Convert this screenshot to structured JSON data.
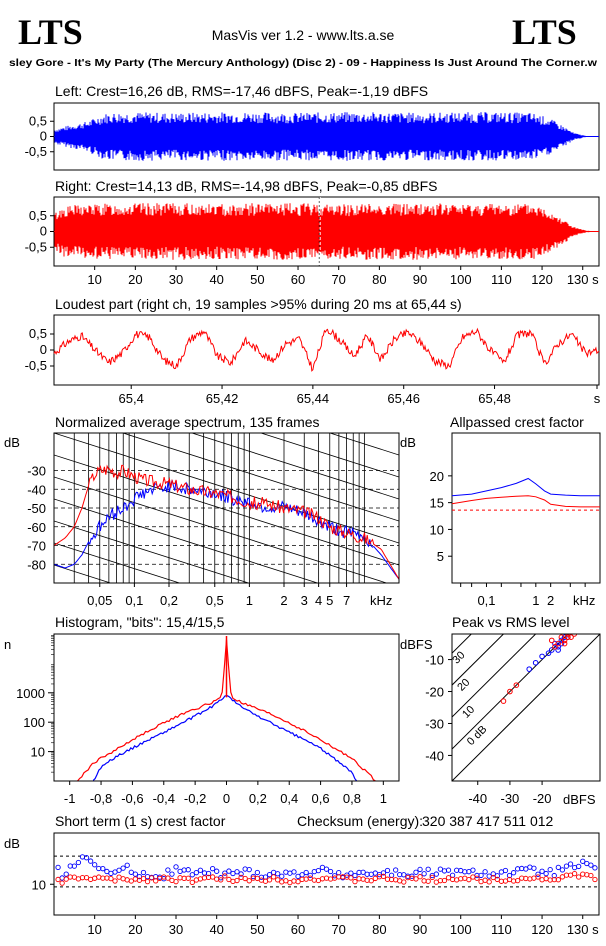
{
  "header": {
    "logo_left": "LTS",
    "logo_right": "LTS",
    "app_title": "MasVis ver 1.2 - www.lts.a.se",
    "song": "sley Gore - It's My Party (The Mercury Anthology) (Disc 2) - 09 - Happiness Is Just Around The Corner.w"
  },
  "colors": {
    "left": "#0000ff",
    "right": "#ff0000",
    "axis": "#000000"
  },
  "chart_data": [
    {
      "id": "left",
      "type": "area",
      "title": "Left: Crest=16,26 dB, RMS=-17,46 dBFS, Peak=-1,19 dBFS",
      "ylim": [
        -1,
        1
      ],
      "y_ticks": [
        "0,5",
        "0",
        "-0,5"
      ],
      "xlim": [
        0,
        134
      ],
      "envelope": {
        "t": [
          0,
          3,
          8,
          12,
          15,
          20,
          30,
          40,
          50,
          60,
          70,
          80,
          90,
          100,
          110,
          118,
          122,
          126,
          128,
          131,
          134
        ],
        "amp": [
          0.25,
          0.35,
          0.5,
          0.75,
          0.8,
          0.8,
          0.78,
          0.8,
          0.8,
          0.78,
          0.8,
          0.8,
          0.78,
          0.8,
          0.8,
          0.78,
          0.6,
          0.3,
          0.12,
          0.02,
          0.0
        ]
      }
    },
    {
      "id": "right",
      "type": "area",
      "title": "Right: Crest=14,13 dB, RMS=-14,98 dBFS, Peak=-0,85 dBFS",
      "ylim": [
        -1,
        1
      ],
      "y_ticks": [
        "0,5",
        "0",
        "-0,5"
      ],
      "xlim": [
        0,
        134
      ],
      "marker_x": 65.44,
      "x_ticks": [
        "10",
        "20",
        "30",
        "40",
        "50",
        "60",
        "70",
        "80",
        "90",
        "100",
        "110",
        "120",
        "130 s"
      ],
      "x_tick_values": [
        10,
        20,
        30,
        40,
        50,
        60,
        70,
        80,
        90,
        100,
        110,
        120,
        130
      ],
      "envelope": {
        "t": [
          0,
          2,
          5,
          10,
          20,
          30,
          40,
          50,
          60,
          70,
          80,
          90,
          100,
          110,
          118,
          122,
          126,
          128,
          131,
          134
        ],
        "amp": [
          0.6,
          0.8,
          0.85,
          0.88,
          0.9,
          0.9,
          0.88,
          0.9,
          0.9,
          0.88,
          0.9,
          0.9,
          0.88,
          0.9,
          0.88,
          0.7,
          0.35,
          0.15,
          0.03,
          0.0
        ]
      }
    },
    {
      "id": "loudest",
      "type": "line",
      "title": "Loudest part (right ch, 19 samples >95% during 20 ms at 65,44 s)",
      "ylim": [
        -1,
        1
      ],
      "y_ticks": [
        "0,5",
        "0",
        "-0,5"
      ],
      "xlim": [
        65.383,
        65.503
      ],
      "x_ticks": [
        "65,4",
        "65,42",
        "65,44",
        "65,46",
        "65,48",
        "s"
      ],
      "x_tick_values": [
        65.4,
        65.42,
        65.44,
        65.46,
        65.48,
        65.5
      ],
      "points": {
        "x": [
          65.383,
          65.386,
          65.389,
          65.392,
          65.395,
          65.398,
          65.401,
          65.404,
          65.407,
          65.41,
          65.413,
          65.416,
          65.419,
          65.422,
          65.425,
          65.428,
          65.431,
          65.434,
          65.437,
          65.44,
          65.443,
          65.446,
          65.449,
          65.452,
          65.455,
          65.458,
          65.461,
          65.464,
          65.467,
          65.47,
          65.473,
          65.476,
          65.479,
          65.482,
          65.485,
          65.488,
          65.491,
          65.494,
          65.497,
          65.5,
          65.503
        ],
        "y": [
          -0.1,
          0.25,
          0.45,
          0.0,
          -0.4,
          -0.1,
          0.5,
          0.4,
          -0.3,
          -0.5,
          0.35,
          0.6,
          -0.2,
          -0.4,
          0.3,
          0.0,
          -0.35,
          0.2,
          0.35,
          -0.6,
          0.7,
          0.3,
          -0.2,
          0.45,
          -0.3,
          0.35,
          0.55,
          0.2,
          -0.35,
          -0.5,
          0.4,
          0.6,
          0.0,
          -0.4,
          0.45,
          0.55,
          -0.45,
          0.2,
          0.5,
          -0.1,
          0.0
        ]
      }
    },
    {
      "id": "spectrum",
      "type": "line",
      "title": "Normalized average spectrum, 135 frames",
      "ylabel": "dB",
      "xlabel": "kHz",
      "y_ticks": [
        "-30",
        "-40",
        "-50",
        "-60",
        "-70",
        "-80"
      ],
      "y_tick_values": [
        -30,
        -40,
        -50,
        -60,
        -70,
        -80
      ],
      "ylim": [
        -90,
        -10
      ],
      "xlim": [
        0.02,
        20
      ],
      "x_scale": "log",
      "x_ticks": [
        "0,05",
        "0,1",
        "0,2",
        "0,5",
        "1",
        "2",
        "3",
        "4",
        "5",
        "7"
      ],
      "x_tick_values": [
        0.05,
        0.1,
        0.2,
        0.5,
        1,
        2,
        3,
        4,
        5,
        7
      ],
      "series": [
        {
          "name": "",
          "color": "#0000ff",
          "x": [
            0.02,
            0.025,
            0.03,
            0.035,
            0.04,
            0.05,
            0.06,
            0.07,
            0.08,
            0.1,
            0.12,
            0.15,
            0.2,
            0.3,
            0.5,
            0.7,
            1,
            1.5,
            2,
            3,
            4,
            5,
            7,
            10,
            14,
            20
          ],
          "y": [
            -80,
            -82,
            -80,
            -75,
            -68,
            -60,
            -55,
            -52,
            -50,
            -45,
            -42,
            -40,
            -38,
            -40,
            -42,
            -45,
            -47,
            -50,
            -50,
            -53,
            -57,
            -60,
            -63,
            -65,
            -75,
            -88
          ]
        },
        {
          "name": "",
          "color": "#ff0000",
          "x": [
            0.02,
            0.025,
            0.03,
            0.035,
            0.04,
            0.045,
            0.05,
            0.06,
            0.07,
            0.08,
            0.1,
            0.12,
            0.15,
            0.2,
            0.3,
            0.5,
            0.7,
            1,
            1.5,
            2,
            3,
            4,
            5,
            7,
            10,
            14,
            20
          ],
          "y": [
            -70,
            -66,
            -60,
            -50,
            -38,
            -32,
            -30,
            -29,
            -31,
            -30,
            -33,
            -35,
            -36,
            -37,
            -40,
            -42,
            -44,
            -47,
            -48,
            -50,
            -52,
            -55,
            -60,
            -63,
            -66,
            -72,
            -88
          ]
        }
      ]
    },
    {
      "id": "allpass",
      "type": "line",
      "title": "Allpassed crest factor",
      "ylabel": "dB",
      "xlabel": "kHz",
      "y_ticks": [
        "20",
        "15",
        "10",
        "5"
      ],
      "y_tick_values": [
        20,
        15,
        10,
        5
      ],
      "ylim": [
        0,
        28
      ],
      "xlim": [
        0.02,
        20
      ],
      "x_scale": "log",
      "x_ticks": [
        "0,1",
        "1",
        "2"
      ],
      "x_tick_values": [
        0.1,
        1,
        2
      ],
      "ref_line": 13.6,
      "series": [
        {
          "name": "",
          "color": "#0000ff",
          "x": [
            0.02,
            0.05,
            0.1,
            0.2,
            0.4,
            0.7,
            1,
            1.5,
            2,
            4,
            8,
            20
          ],
          "y": [
            16.3,
            16.6,
            17.2,
            17.8,
            18.6,
            19.5,
            18.5,
            17.2,
            16.6,
            16.4,
            16.3,
            16.3
          ]
        },
        {
          "name": "",
          "color": "#ff0000",
          "x": [
            0.02,
            0.05,
            0.1,
            0.2,
            0.4,
            0.7,
            1,
            1.5,
            2,
            4,
            8,
            20
          ],
          "y": [
            14.8,
            15.4,
            15.8,
            16.0,
            16.2,
            16.3,
            16.1,
            15.5,
            14.7,
            14.3,
            14.2,
            14.2
          ]
        }
      ]
    },
    {
      "id": "histogram",
      "type": "line",
      "title": "Histogram, \"bits\": 15,4/15,5",
      "ylabel": "n",
      "y_scale": "log",
      "y_ticks": [
        "1000",
        "100",
        "10"
      ],
      "y_tick_values": [
        1000,
        100,
        10
      ],
      "ylim": [
        1,
        100000
      ],
      "xlim": [
        -1.1,
        1.1
      ],
      "x_ticks": [
        "-1",
        "-0,8",
        "-0,6",
        "-0,4",
        "-0,2",
        "0",
        "0,2",
        "0,4",
        "0,6",
        "0,8",
        "1"
      ],
      "x_tick_values": [
        -1,
        -0.8,
        -0.6,
        -0.4,
        -0.2,
        0,
        0.2,
        0.4,
        0.6,
        0.8,
        1
      ],
      "series": [
        {
          "name": "",
          "color": "#ff0000",
          "x": [
            -0.95,
            -0.9,
            -0.85,
            -0.8,
            -0.7,
            -0.6,
            -0.5,
            -0.4,
            -0.3,
            -0.2,
            -0.1,
            -0.03,
            0,
            0.03,
            0.1,
            0.2,
            0.3,
            0.4,
            0.5,
            0.6,
            0.7,
            0.8,
            0.85,
            0.9,
            0.95
          ],
          "y": [
            1,
            2,
            4,
            6,
            12,
            25,
            50,
            95,
            170,
            280,
            450,
            700,
            60000,
            700,
            450,
            280,
            170,
            95,
            50,
            25,
            12,
            6,
            3,
            2,
            1
          ]
        },
        {
          "name": "",
          "color": "#0000ff",
          "x": [
            -0.85,
            -0.8,
            -0.7,
            -0.6,
            -0.5,
            -0.4,
            -0.3,
            -0.2,
            -0.1,
            -0.03,
            0,
            0.03,
            0.1,
            0.2,
            0.3,
            0.4,
            0.5,
            0.6,
            0.7,
            0.8,
            0.83
          ],
          "y": [
            1,
            3,
            7,
            13,
            25,
            45,
            85,
            160,
            320,
            600,
            900,
            600,
            320,
            160,
            85,
            45,
            25,
            13,
            5,
            2,
            1
          ]
        }
      ]
    },
    {
      "id": "peak_rms",
      "type": "scatter",
      "title": "Peak vs RMS level",
      "ylabel": "dBFS",
      "xlabel": "dBFS",
      "y_ticks": [
        "-10",
        "-20",
        "-30",
        "-40"
      ],
      "y_tick_values": [
        -10,
        -20,
        -30,
        -40
      ],
      "x_ticks": [
        "-40",
        "-30",
        "-20"
      ],
      "x_tick_values": [
        -40,
        -30,
        -20
      ],
      "xlim": [
        -48,
        -2
      ],
      "ylim": [
        -48,
        -2
      ],
      "diagonal_labels": [
        "40",
        "30",
        "20",
        "10",
        "0 dB"
      ],
      "diagonal_values": [
        40,
        30,
        20,
        10,
        0
      ],
      "series": [
        {
          "name": "",
          "color": "#0000ff",
          "x": [
            -16,
            -15,
            -14,
            -17,
            -13,
            -18,
            -20,
            -22,
            -24,
            -15,
            -14,
            -12
          ],
          "y": [
            -5,
            -6,
            -4,
            -7,
            -3,
            -8,
            -9,
            -11,
            -13,
            -7,
            -5,
            -3
          ]
        },
        {
          "name": "",
          "color": "#ff0000",
          "x": [
            -14,
            -13,
            -12,
            -11,
            -15,
            -16,
            -17,
            -10,
            -12,
            -13,
            -28,
            -30,
            -32
          ],
          "y": [
            -3,
            -4,
            -2,
            -3,
            -5,
            -6,
            -4,
            -2,
            -3,
            -5,
            -18,
            -20,
            -23
          ]
        }
      ]
    },
    {
      "id": "short_crest",
      "type": "scatter",
      "title": "Short term (1 s) crest factor",
      "checksum_label": "Checksum (energy):",
      "checksum_value": "320 387 417 511 012",
      "ylabel": "dB",
      "y_ticks": [
        "10"
      ],
      "y_tick_values": [
        10
      ],
      "ylim": [
        4,
        20
      ],
      "xlim": [
        0,
        134
      ],
      "ref_lines": [
        15.5,
        9.5
      ],
      "x_ticks": [
        "10",
        "20",
        "30",
        "40",
        "50",
        "60",
        "70",
        "80",
        "90",
        "100",
        "110",
        "120",
        "130 s"
      ],
      "x_tick_values": [
        10,
        20,
        30,
        40,
        50,
        60,
        70,
        80,
        90,
        100,
        110,
        120,
        130
      ],
      "series": [
        {
          "name": "",
          "color": "#0000ff",
          "x": [
            2,
            4,
            6,
            8,
            10,
            12,
            14,
            18,
            22,
            26,
            30,
            34,
            38,
            42,
            46,
            50,
            54,
            58,
            62,
            66,
            70,
            74,
            78,
            82,
            86,
            90,
            94,
            98,
            102,
            106,
            110,
            114,
            118,
            122,
            126,
            130,
            133
          ],
          "y": [
            12,
            13.5,
            14,
            15.5,
            14,
            13,
            12,
            13,
            12,
            11.5,
            13,
            12,
            12.5,
            11.8,
            12.5,
            12,
            12.2,
            11.8,
            12.4,
            12.6,
            12,
            12.3,
            12,
            12.4,
            11.9,
            12.3,
            12.1,
            12.4,
            12,
            12.3,
            12.1,
            12.4,
            12.6,
            12.2,
            13,
            14,
            12.5
          ]
        },
        {
          "name": "",
          "color": "#ff0000",
          "x": [
            2,
            4,
            6,
            8,
            10,
            12,
            14,
            18,
            22,
            26,
            30,
            34,
            38,
            42,
            46,
            50,
            54,
            58,
            62,
            66,
            70,
            74,
            78,
            82,
            86,
            90,
            94,
            98,
            102,
            106,
            110,
            114,
            118,
            122,
            126,
            130,
            133
          ],
          "y": [
            10.5,
            11,
            11.2,
            11,
            11.5,
            11,
            10.8,
            11,
            10.9,
            11.2,
            11,
            10.8,
            11,
            11.2,
            10.9,
            11,
            11.1,
            10.8,
            11,
            11.2,
            11,
            10.9,
            11,
            11.1,
            10.8,
            11,
            10.9,
            11.2,
            11,
            10.8,
            11,
            11.1,
            11.2,
            11,
            11.5,
            11.8,
            11
          ]
        }
      ]
    }
  ]
}
